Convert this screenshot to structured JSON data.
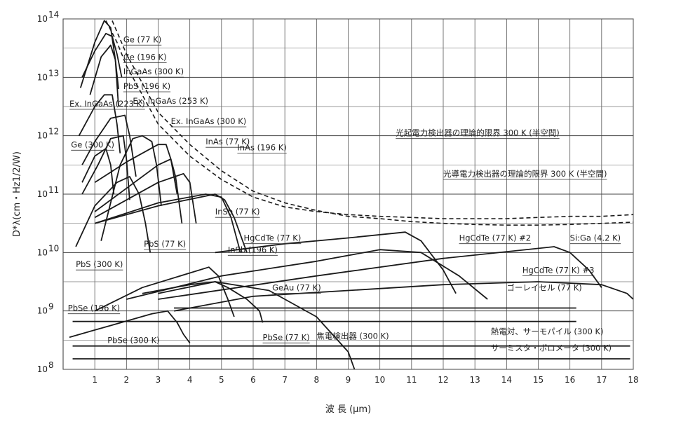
{
  "chart_data": {
    "type": "line",
    "title": "",
    "xlabel": "波 長 (µm)",
    "ylabel": "D*λ(cm・Hz1/2/W)",
    "xlim": [
      0,
      18
    ],
    "ylim_exp": [
      8,
      14
    ],
    "yscale": "log",
    "grid": true,
    "x_ticks": [
      "1",
      "2",
      "3",
      "4",
      "5",
      "6",
      "7",
      "8",
      "9",
      "10",
      "11",
      "12",
      "13",
      "14",
      "15",
      "16",
      "17",
      "18"
    ],
    "y_ticks": [
      {
        "base": "10",
        "exp": "14"
      },
      {
        "base": "10",
        "exp": "13"
      },
      {
        "base": "10",
        "exp": "12"
      },
      {
        "base": "10",
        "exp": "11"
      },
      {
        "base": "10",
        "exp": "10"
      },
      {
        "base": "10",
        "exp": "9"
      },
      {
        "base": "10",
        "exp": "8"
      }
    ],
    "series": [
      {
        "name": "Ge (77 K)",
        "style": "solid",
        "points": [
          [
            0.55,
            12.82
          ],
          [
            1.0,
            13.6
          ],
          [
            1.3,
            13.97
          ],
          [
            1.5,
            13.85
          ],
          [
            1.65,
            13.3
          ],
          [
            1.75,
            12.8
          ]
        ],
        "label_pos": [
          1.9,
          13.6
        ]
      },
      {
        "name": "Ge (196 K)",
        "style": "solid",
        "points": [
          [
            0.6,
            13.0
          ],
          [
            1.0,
            13.45
          ],
          [
            1.35,
            13.75
          ],
          [
            1.55,
            13.7
          ],
          [
            1.7,
            13.4
          ],
          [
            1.85,
            13.0
          ]
        ],
        "label_pos": [
          1.9,
          13.3
        ]
      },
      {
        "name": "InGaAs (300 K)",
        "style": "solid",
        "points": [
          [
            0.85,
            12.7
          ],
          [
            1.2,
            13.35
          ],
          [
            1.5,
            13.55
          ],
          [
            1.65,
            13.3
          ],
          [
            1.75,
            12.5
          ]
        ],
        "label_pos": [
          1.9,
          13.05
        ]
      },
      {
        "name": "PbS (196 K)",
        "style": "solid",
        "points": [
          [
            1.2,
            10.2
          ],
          [
            1.8,
            11.5
          ],
          [
            2.2,
            11.95
          ],
          [
            2.5,
            12.0
          ],
          [
            2.8,
            11.9
          ],
          [
            2.95,
            11.5
          ],
          [
            3.1,
            10.8
          ]
        ],
        "label_pos": [
          1.9,
          12.8
        ]
      },
      {
        "name": "Ex. InGaAs (223 K)",
        "style": "solid",
        "points": [
          [
            0.5,
            12.0
          ],
          [
            1.0,
            12.5
          ],
          [
            1.3,
            12.7
          ],
          [
            1.55,
            12.7
          ],
          [
            1.7,
            12.2
          ],
          [
            1.8,
            11.7
          ]
        ],
        "label_pos": [
          0.2,
          12.5
        ]
      },
      {
        "name": "Ex. InGaAs (253 K)",
        "style": "solid",
        "points": [
          [
            0.6,
            11.5
          ],
          [
            1.0,
            11.9
          ],
          [
            1.5,
            12.3
          ],
          [
            1.95,
            12.35
          ],
          [
            2.1,
            12.0
          ],
          [
            2.3,
            11.3
          ]
        ],
        "label_pos": [
          2.2,
          12.55
        ]
      },
      {
        "name": "Ex. InGaAs (300 K)",
        "style": "solid",
        "points": [
          [
            0.6,
            11.0
          ],
          [
            1.1,
            11.5
          ],
          [
            1.5,
            11.95
          ],
          [
            1.9,
            12.0
          ],
          [
            2.0,
            11.6
          ],
          [
            2.1,
            10.9
          ]
        ],
        "label_pos": [
          3.4,
          12.2
        ]
      },
      {
        "name": "InAs (77 K)",
        "style": "solid",
        "points": [
          [
            1.0,
            11.2
          ],
          [
            2.0,
            11.55
          ],
          [
            3.0,
            11.85
          ],
          [
            3.25,
            11.85
          ],
          [
            3.4,
            11.6
          ],
          [
            3.6,
            11.0
          ]
        ],
        "label_pos": [
          4.5,
          11.85
        ]
      },
      {
        "name": "InAs (196 K)",
        "style": "solid",
        "points": [
          [
            1.0,
            10.7
          ],
          [
            2.0,
            11.1
          ],
          [
            3.0,
            11.5
          ],
          [
            3.4,
            11.6
          ],
          [
            3.55,
            11.3
          ],
          [
            3.75,
            10.5
          ]
        ],
        "label_pos": [
          5.5,
          11.75
        ]
      },
      {
        "name": "Ge (300 K)",
        "style": "solid",
        "points": [
          [
            0.6,
            11.2
          ],
          [
            1.0,
            11.65
          ],
          [
            1.35,
            11.78
          ],
          [
            1.5,
            11.5
          ],
          [
            1.6,
            11.0
          ]
        ],
        "label_pos": [
          0.25,
          11.8
        ]
      },
      {
        "name": "InSb (77 K)",
        "style": "solid",
        "points": [
          [
            1.0,
            10.5
          ],
          [
            3.0,
            10.85
          ],
          [
            4.5,
            11.0
          ],
          [
            5.0,
            10.95
          ],
          [
            5.3,
            10.6
          ],
          [
            5.6,
            10.0
          ]
        ],
        "label_pos": [
          4.8,
          10.65
        ]
      },
      {
        "name": "PbS (300 K)",
        "style": "solid",
        "points": [
          [
            0.4,
            10.1
          ],
          [
            1.0,
            10.8
          ],
          [
            1.7,
            11.2
          ],
          [
            2.1,
            11.3
          ],
          [
            2.4,
            11.0
          ],
          [
            2.6,
            10.5
          ],
          [
            2.75,
            10.0
          ]
        ],
        "label_pos": [
          0.4,
          9.75
        ]
      },
      {
        "name": "PbS (77 K)",
        "style": "solid",
        "points": [
          [
            1.0,
            10.6
          ],
          [
            2.0,
            10.9
          ],
          [
            3.0,
            11.2
          ],
          [
            3.8,
            11.35
          ],
          [
            4.0,
            11.2
          ],
          [
            4.2,
            10.5
          ]
        ],
        "label_pos": [
          2.55,
          10.1
        ]
      },
      {
        "name": "InSb (196 K)",
        "style": "solid",
        "points": [
          [
            1.0,
            10.5
          ],
          [
            3.0,
            10.8
          ],
          [
            4.8,
            11.0
          ],
          [
            5.1,
            10.9
          ],
          [
            5.4,
            10.6
          ],
          [
            5.8,
            10.0
          ]
        ],
        "label_pos": [
          5.2,
          10.0
        ]
      },
      {
        "name": "HgCdTe (77 K)",
        "style": "solid",
        "points": [
          [
            4.8,
            10.0
          ],
          [
            7.0,
            10.15
          ],
          [
            9.0,
            10.25
          ],
          [
            10.8,
            10.35
          ],
          [
            11.3,
            10.2
          ],
          [
            12.0,
            9.7
          ],
          [
            12.4,
            9.3
          ]
        ],
        "label_pos": [
          5.7,
          10.2
        ]
      },
      {
        "name": "HgCdTe (77 K) #2",
        "style": "solid",
        "points": [
          [
            2.0,
            9.2
          ],
          [
            5.0,
            9.6
          ],
          [
            8.0,
            9.85
          ],
          [
            10.0,
            10.05
          ],
          [
            11.3,
            10.0
          ],
          [
            12.5,
            9.6
          ],
          [
            13.4,
            9.2
          ]
        ],
        "label_pos": [
          12.5,
          10.2
        ]
      },
      {
        "name": "Si:Ga (4.2 K)",
        "style": "solid",
        "points": [
          [
            3.0,
            9.2
          ],
          [
            8.0,
            9.6
          ],
          [
            12.0,
            9.9
          ],
          [
            15.5,
            10.1
          ],
          [
            16.0,
            10.0
          ],
          [
            16.6,
            9.7
          ],
          [
            17.0,
            9.4
          ]
        ],
        "label_pos": [
          16.0,
          10.2
        ]
      },
      {
        "name": "PbSe (196 K)",
        "style": "solid",
        "points": [
          [
            1.0,
            9.0
          ],
          [
            2.5,
            9.4
          ],
          [
            4.0,
            9.65
          ],
          [
            4.6,
            9.75
          ],
          [
            4.9,
            9.6
          ],
          [
            5.2,
            9.2
          ],
          [
            5.4,
            8.9
          ]
        ],
        "label_pos": [
          0.15,
          9.0
        ]
      },
      {
        "name": "PbSe (300 K)",
        "style": "solid",
        "points": [
          [
            0.2,
            8.55
          ],
          [
            1.5,
            8.75
          ],
          [
            2.8,
            8.95
          ],
          [
            3.3,
            9.0
          ],
          [
            3.6,
            8.8
          ],
          [
            3.8,
            8.6
          ],
          [
            4.0,
            8.45
          ]
        ],
        "label_pos": [
          1.4,
          8.45
        ]
      },
      {
        "name": "PbSe (77 K)",
        "style": "solid",
        "points": [
          [
            2.5,
            9.3
          ],
          [
            4.0,
            9.45
          ],
          [
            4.8,
            9.5
          ],
          [
            5.2,
            9.4
          ],
          [
            5.8,
            9.2
          ],
          [
            6.2,
            9.0
          ],
          [
            6.3,
            8.8
          ]
        ],
        "label_pos": [
          6.3,
          8.5
        ]
      },
      {
        "name": "GeAu (77 K)",
        "style": "solid",
        "points": [
          [
            3.0,
            9.3
          ],
          [
            4.8,
            9.5
          ],
          [
            6.5,
            9.35
          ],
          [
            8.0,
            8.9
          ],
          [
            9.0,
            8.3
          ],
          [
            9.2,
            8.0
          ]
        ],
        "label_pos": [
          6.6,
          9.35
        ]
      },
      {
        "name": "HgCdTe (77 K) #3",
        "style": "solid",
        "points": [
          [
            3.5,
            9.0
          ],
          [
            6.0,
            9.25
          ],
          [
            9.0,
            9.35
          ],
          [
            12.0,
            9.45
          ],
          [
            15.0,
            9.5
          ],
          [
            17.0,
            9.45
          ],
          [
            17.8,
            9.3
          ],
          [
            18.0,
            9.2
          ]
        ],
        "label_pos": [
          14.5,
          9.65
        ]
      },
      {
        "name": "光起電力検出器の理論的限界 300 K (半空間)",
        "style": "dashed",
        "points": [
          [
            1.35,
            13.97
          ],
          [
            1.7,
            13.6
          ],
          [
            2.0,
            13.2
          ],
          [
            3.0,
            12.2
          ],
          [
            4.0,
            11.65
          ],
          [
            5.0,
            11.25
          ],
          [
            6.0,
            10.95
          ],
          [
            7.0,
            10.78
          ],
          [
            8.0,
            10.7
          ],
          [
            9.0,
            10.65
          ],
          [
            10.0,
            10.62
          ],
          [
            11.0,
            10.6
          ],
          [
            12.0,
            10.58
          ],
          [
            13.0,
            10.58
          ],
          [
            14.0,
            10.58
          ],
          [
            15.0,
            10.6
          ],
          [
            16.0,
            10.62
          ],
          [
            17.0,
            10.62
          ],
          [
            18.0,
            10.65
          ]
        ],
        "label_pos": [
          10.5,
          12.0
        ]
      },
      {
        "name": "光導電力検出器の理論的限界 300 K (半空間)",
        "style": "dashed",
        "points": [
          [
            1.55,
            13.97
          ],
          [
            2.0,
            13.4
          ],
          [
            3.0,
            12.4
          ],
          [
            4.0,
            11.85
          ],
          [
            5.0,
            11.4
          ],
          [
            6.0,
            11.05
          ],
          [
            7.0,
            10.85
          ],
          [
            8.0,
            10.72
          ],
          [
            9.0,
            10.62
          ],
          [
            10.0,
            10.58
          ],
          [
            11.0,
            10.53
          ],
          [
            12.0,
            10.5
          ],
          [
            13.0,
            10.48
          ],
          [
            14.0,
            10.47
          ],
          [
            15.0,
            10.47
          ],
          [
            16.0,
            10.48
          ],
          [
            17.0,
            10.5
          ],
          [
            18.0,
            10.52
          ]
        ],
        "label_pos": [
          12.0,
          11.3
        ]
      }
    ],
    "flat_lines": [
      {
        "name": "ゴーレイセル (77 K)",
        "x": [
          3.5,
          16.2
        ],
        "value_exp": 9.05,
        "label_pos": [
          14.0,
          9.35
        ]
      },
      {
        "name": "焦電検出器 (300 K)",
        "x": [
          0.3,
          16.2
        ],
        "value_exp": 8.82,
        "label_pos": [
          8.0,
          8.52
        ]
      },
      {
        "name": "熱電対、サーモパイル (300 K)",
        "x": [
          0.3,
          17.9
        ],
        "value_exp": 8.4,
        "label_pos": [
          13.5,
          8.6
        ]
      },
      {
        "name": "サーミスタ・ボロメータ (300 K)",
        "x": [
          0.3,
          17.9
        ],
        "value_exp": 8.18,
        "label_pos": [
          13.5,
          8.32
        ]
      }
    ]
  }
}
